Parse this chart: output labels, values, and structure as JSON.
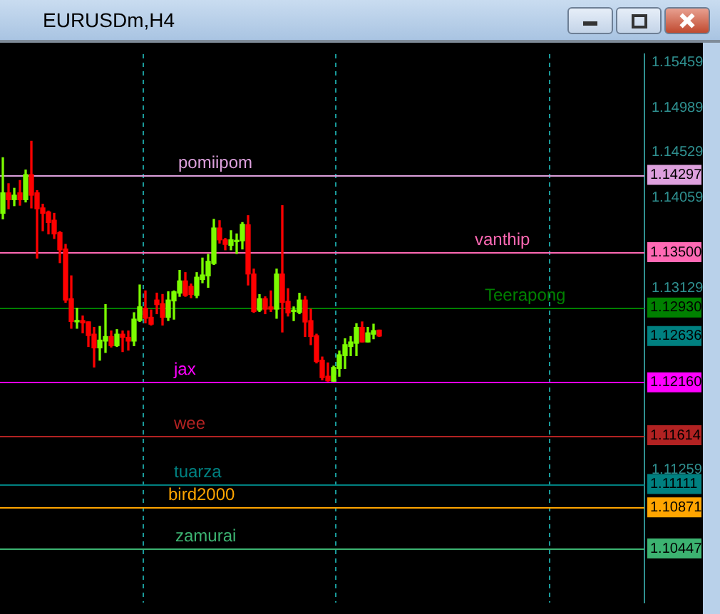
{
  "chart_data": {
    "type": "candlestick",
    "title": "EURUSDm,H4",
    "categories": [
      null,
      null,
      null,
      null,
      null,
      null,
      null,
      null,
      null,
      null,
      null,
      null,
      null,
      null,
      null,
      null,
      null,
      null,
      null,
      null,
      null,
      null,
      null,
      null,
      null,
      null,
      null,
      null,
      null,
      null,
      null,
      null,
      null,
      null,
      null,
      null,
      null,
      null,
      null,
      null,
      null,
      null,
      null,
      null,
      null,
      null,
      null,
      null,
      null,
      null,
      null,
      null,
      null,
      null,
      null,
      null,
      null,
      null,
      null,
      null,
      null,
      null,
      null,
      null,
      null,
      null,
      null,
      null,
      null,
      null,
      null,
      null,
      null,
      null,
      null,
      null,
      null,
      null,
      null,
      null,
      null,
      null,
      null,
      null,
      null,
      null,
      null,
      null,
      null,
      null,
      null,
      null,
      null,
      null,
      null,
      null,
      null,
      null,
      null,
      null,
      null,
      null,
      null,
      null,
      null,
      null,
      null,
      null,
      null,
      null,
      null,
      null,
      null
    ],
    "ohlc": [
      [
        1.139,
        1.14473,
        1.13843,
        1.14111
      ],
      [
        1.14111,
        1.14205,
        1.13947,
        1.14041
      ],
      [
        1.14041,
        1.14158,
        1.13979,
        1.14087
      ],
      [
        1.14111,
        1.14238,
        1.13984,
        1.14041
      ],
      [
        1.14041,
        1.14346,
        1.14017,
        1.14299
      ],
      [
        1.14299,
        1.14642,
        1.13956,
        1.14087
      ],
      [
        1.14111,
        1.14134,
        1.13439,
        1.13947
      ],
      [
        1.13956,
        1.13994,
        1.13721,
        1.139
      ],
      [
        1.13914,
        1.13923,
        1.13688,
        1.13806
      ],
      [
        1.13829,
        1.139,
        1.13641,
        1.13688
      ],
      [
        1.13702,
        1.13712,
        1.13392,
        1.13524
      ],
      [
        1.13533,
        1.1358,
        1.12984,
        1.13007
      ],
      [
        1.13021,
        1.13256,
        1.12716,
        1.12786
      ],
      [
        1.12782,
        1.12923,
        1.12716,
        1.12796
      ],
      [
        1.12796,
        1.12843,
        1.12669,
        1.12772
      ],
      [
        1.12782,
        1.12782,
        1.12528,
        1.12641
      ],
      [
        1.12655,
        1.12725,
        1.12317,
        1.12514
      ],
      [
        1.12514,
        1.12735,
        1.12387,
        1.12594
      ],
      [
        1.12584,
        1.1296,
        1.12467,
        1.12631
      ],
      [
        1.12631,
        1.12688,
        1.12523,
        1.12537
      ],
      [
        1.12537,
        1.12702,
        1.12528,
        1.12655
      ],
      [
        1.12655,
        1.12688,
        1.12476,
        1.12622
      ],
      [
        1.12622,
        1.12688,
        1.12491,
        1.12584
      ],
      [
        1.12584,
        1.12876,
        1.12537,
        1.1281
      ],
      [
        1.12796,
        1.13162,
        1.12786,
        1.12937
      ],
      [
        1.12923,
        1.13101,
        1.12772,
        1.12819
      ],
      [
        1.12829,
        1.12904,
        1.12749,
        1.12758
      ],
      [
        1.13007,
        1.13078,
        1.12866,
        1.1296
      ],
      [
        1.1297,
        1.13064,
        1.12749,
        1.12829
      ],
      [
        1.12829,
        1.13092,
        1.12796,
        1.13007
      ],
      [
        1.12998,
        1.13101,
        1.1281,
        1.13092
      ],
      [
        1.13078,
        1.13312,
        1.13045,
        1.13204
      ],
      [
        1.13204,
        1.13289,
        1.13045,
        1.13054
      ],
      [
        1.13148,
        1.13172,
        1.13031,
        1.13064
      ],
      [
        1.13054,
        1.13289,
        1.13031,
        1.13242
      ],
      [
        1.13218,
        1.13439,
        1.13185,
        1.13265
      ],
      [
        1.13256,
        1.13477,
        1.13138,
        1.13406
      ],
      [
        1.13383,
        1.13838,
        1.13373,
        1.13749
      ],
      [
        1.13749,
        1.13824,
        1.13594,
        1.13627
      ],
      [
        1.13627,
        1.13641,
        1.13524,
        1.1358
      ],
      [
        1.1357,
        1.13721,
        1.13524,
        1.13627
      ],
      [
        1.13608,
        1.13688,
        1.13486,
        1.13617
      ],
      [
        1.13617,
        1.13805,
        1.13533,
        1.13787
      ],
      [
        1.13782,
        1.13876,
        1.13162,
        1.13275
      ],
      [
        1.13275,
        1.13326,
        1.1288,
        1.12889
      ],
      [
        1.12903,
        1.13063,
        1.12889,
        1.13021
      ],
      [
        1.13021,
        1.1304,
        1.12866,
        1.12913
      ],
      [
        1.12936,
        1.13101,
        1.12889,
        1.12913
      ],
      [
        1.12913,
        1.13326,
        1.12819,
        1.13275
      ],
      [
        1.13275,
        1.13979,
        1.12678,
        1.12983
      ],
      [
        1.12993,
        1.13124,
        1.12842,
        1.12875
      ],
      [
        1.12889,
        1.12936,
        1.12795,
        1.12903
      ],
      [
        1.1288,
        1.13077,
        1.12866,
        1.13007
      ],
      [
        1.13007,
        1.13044,
        1.12631,
        1.12781
      ],
      [
        1.12795,
        1.12913,
        1.12547,
        1.12631
      ],
      [
        1.1264,
        1.12655,
        1.12359,
        1.12373
      ],
      [
        1.12387,
        1.1242,
        1.12185,
        1.12208
      ],
      [
        1.12222,
        1.12359,
        1.12171,
        1.12175
      ],
      [
        1.12171,
        1.12326,
        1.12171,
        1.12312
      ],
      [
        1.12302,
        1.12481,
        1.12222,
        1.12443
      ],
      [
        1.12434,
        1.12608,
        1.12302,
        1.12547
      ],
      [
        1.12528,
        1.12631,
        1.12434,
        1.12575
      ],
      [
        1.12561,
        1.12763,
        1.12434,
        1.12725
      ],
      [
        1.12725,
        1.12781,
        1.12575,
        1.12575
      ],
      [
        1.12575,
        1.12725,
        1.12575,
        1.12669
      ],
      [
        1.12655,
        1.12758,
        1.12608,
        1.12692
      ],
      [
        1.12697,
        1.12697,
        1.12631,
        1.12636
      ],
      null,
      null,
      null,
      null,
      null,
      null,
      null,
      null,
      null,
      null,
      null,
      null,
      null,
      null,
      null,
      null,
      null,
      null,
      null,
      null,
      null,
      null,
      null,
      null,
      null,
      null,
      null,
      null,
      null,
      null,
      null,
      null,
      null,
      null,
      null,
      null,
      null,
      null,
      null,
      null,
      null,
      null,
      null,
      null,
      null,
      null
    ],
    "colors": [
      "#7cfc00",
      "#ff0000",
      "#7cfc00",
      "#ff0000",
      "#7cfc00",
      "#ff0000",
      "#ff0000",
      "#ff0000",
      "#ff0000",
      "#ff0000",
      "#ff0000",
      "#ff0000",
      "#ff0000",
      "#7cfc00",
      "#ff0000",
      "#ff0000",
      "#ff0000",
      "#7cfc00",
      "#7cfc00",
      "#ff0000",
      "#7cfc00",
      "#ff0000",
      "#ff0000",
      "#7cfc00",
      "#7cfc00",
      "#ff0000",
      "#ff0000",
      "#ff0000",
      "#ff0000",
      "#7cfc00",
      "#7cfc00",
      "#7cfc00",
      "#ff0000",
      "#ff0000",
      "#7cfc00",
      "#7cfc00",
      "#7cfc00",
      "#7cfc00",
      "#ff0000",
      "#ff0000",
      "#7cfc00",
      "#7cfc00",
      "#7cfc00",
      "#ff0000",
      "#ff0000",
      "#7cfc00",
      "#ff0000",
      "#ff0000",
      "#7cfc00",
      "#ff0000",
      "#ff0000",
      "#7cfc00",
      "#7cfc00",
      "#ff0000",
      "#ff0000",
      "#ff0000",
      "#ff0000",
      "#ff0000",
      "#7cfc00",
      "#7cfc00",
      "#7cfc00",
      "#7cfc00",
      "#7cfc00",
      "#ff0000",
      "#7cfc00",
      "#7cfc00",
      "#ff0000",
      null,
      null,
      null,
      null,
      null,
      null,
      null,
      null,
      null,
      null,
      null,
      null,
      null,
      null,
      null,
      null,
      null,
      null,
      null,
      null,
      null,
      null,
      null,
      null,
      null,
      null,
      null,
      null,
      null,
      null,
      null,
      null,
      null,
      null,
      null,
      null,
      null,
      null,
      null,
      null,
      null,
      null,
      null,
      null,
      null,
      null
    ],
    "ylim": [
      1.0989,
      1.1554
    ],
    "yticks": [
      1.15459,
      1.14989,
      1.14529,
      1.14059,
      1.13129,
      1.11259
    ],
    "ref_lines": [
      {
        "axis": "y",
        "value": 1.14297,
        "label": "pomiipom",
        "color": "#dda0dd"
      },
      {
        "axis": "y",
        "value": 1.135,
        "label": "vanthip",
        "color": "#ff69b4"
      },
      {
        "axis": "y",
        "value": 1.1293,
        "label": "Teerapong",
        "color": "#008000"
      },
      {
        "axis": "y",
        "value": 1.1216,
        "label": "jax",
        "color": "#ff00ff"
      },
      {
        "axis": "y",
        "value": 1.11614,
        "label": "wee",
        "color": "#b22222"
      },
      {
        "axis": "y",
        "value": 1.11111,
        "label": "tuarza",
        "color": "#008080"
      },
      {
        "axis": "y",
        "value": 1.10871,
        "label": "bird2000",
        "color": "#ffa500"
      },
      {
        "axis": "y",
        "value": 1.10447,
        "label": "zamurai",
        "color": "#3cb371"
      }
    ],
    "annotations": [
      {
        "text": "1.14297",
        "y": 1.14297
      },
      {
        "text": "1.13500",
        "y": 1.135
      },
      {
        "text": "1.12930",
        "y": 1.1293
      },
      {
        "text": "1.12636",
        "y": 1.12636
      },
      {
        "text": "1.12160",
        "y": 1.1216
      },
      {
        "text": "1.11614",
        "y": 1.11614
      },
      {
        "text": "1.11111",
        "y": 1.11111
      },
      {
        "text": "1.10871",
        "y": 1.10871
      },
      {
        "text": "1.10447",
        "y": 1.10447
      }
    ],
    "grid": false,
    "legend": false
  }
}
